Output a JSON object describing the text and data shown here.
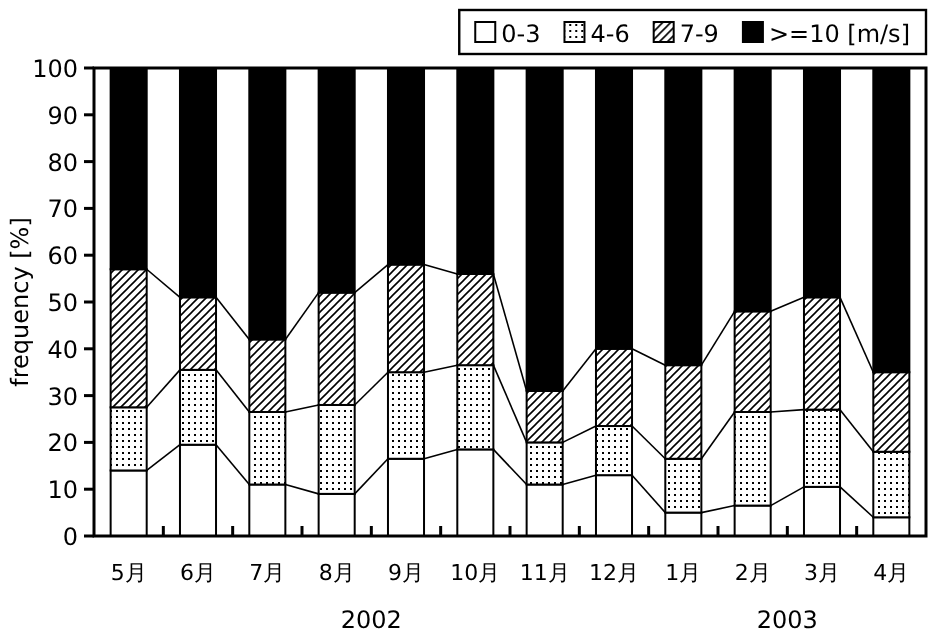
{
  "chart_data": {
    "type": "bar",
    "stacked": true,
    "ylabel": "frequency [%]",
    "categories": [
      "5月",
      "6月",
      "7月",
      "8月",
      "9月",
      "10月",
      "11月",
      "12月",
      "1月",
      "2月",
      "3月",
      "4月"
    ],
    "series": [
      {
        "name": "0-3",
        "color": "#ffffff",
        "values": [
          14,
          19.5,
          11,
          9,
          16.5,
          18.5,
          11,
          13,
          5,
          6.5,
          10.5,
          4
        ]
      },
      {
        "name": "4-6",
        "color": "#000000",
        "values": [
          13.5,
          16,
          15.5,
          19,
          18.5,
          18,
          9,
          10.5,
          11.5,
          20,
          16.5,
          14
        ]
      },
      {
        "name": "7-9",
        "color": "#000000",
        "values": [
          29.5,
          15.5,
          15.5,
          24,
          23,
          19.5,
          11,
          16.5,
          20,
          21.5,
          24,
          17
        ]
      },
      {
        "name": ">=10 [m/s]",
        "color": "#000000",
        "values": [
          43,
          49,
          58,
          48,
          42,
          44,
          69,
          60,
          63.5,
          52,
          49,
          65
        ]
      }
    ],
    "ylim": [
      0,
      100
    ],
    "yticks": [
      0,
      10,
      20,
      30,
      40,
      50,
      60,
      70,
      80,
      90,
      100
    ],
    "legend": "top right",
    "annotations": [
      "2002",
      "2003"
    ]
  }
}
